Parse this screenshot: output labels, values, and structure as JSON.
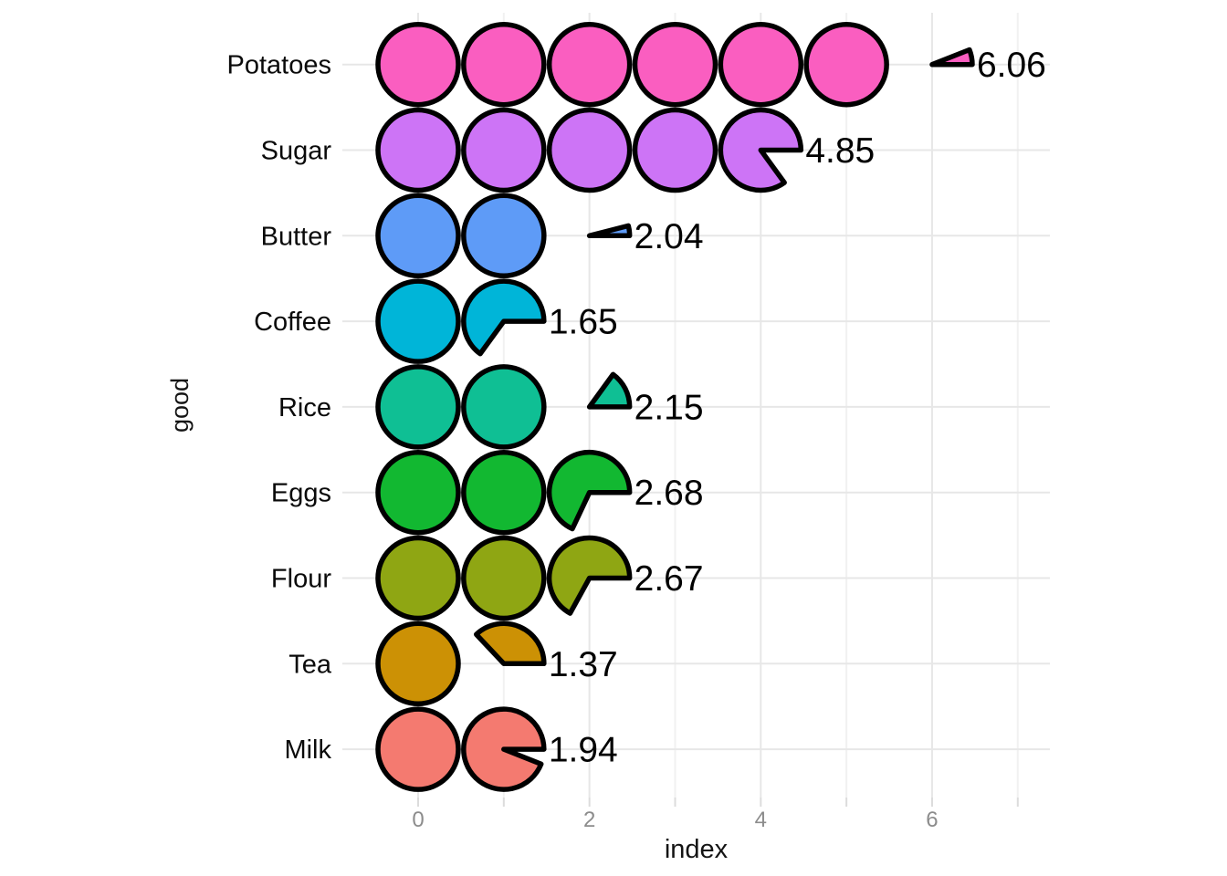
{
  "chart_data": {
    "type": "pictogram",
    "description": "Isotype-style chart: each whole unit of index is a filled circle on a unit grid; the fractional remainder is drawn as a pie wedge starting at 3 o'clock and sweeping counterclockwise. One row per good.",
    "title": "",
    "xlabel": "index",
    "ylabel": "good",
    "categories": [
      "Potatoes",
      "Sugar",
      "Butter",
      "Coffee",
      "Rice",
      "Eggs",
      "Flour",
      "Tea",
      "Milk"
    ],
    "values": [
      6.06,
      4.85,
      2.04,
      1.65,
      2.15,
      2.68,
      2.67,
      1.37,
      1.94
    ],
    "value_labels": [
      "6.06",
      "4.85",
      "2.04",
      "1.65",
      "2.15",
      "2.68",
      "2.67",
      "1.37",
      "1.94"
    ],
    "series_colors": [
      "#FA5EC0",
      "#CD74F6",
      "#5E9BF7",
      "#00B5D8",
      "#0FBF94",
      "#12B831",
      "#8FA613",
      "#CC9105",
      "#F47A70"
    ],
    "x_ticks": [
      0,
      2,
      4,
      6
    ],
    "x_tick_labels": [
      "0",
      "2",
      "4",
      "6"
    ],
    "x_minor_ticks": [
      1,
      3,
      5,
      7
    ],
    "x_unit_positions": [
      0,
      1,
      2,
      3,
      4,
      5,
      6,
      7
    ],
    "xlim": [
      -0.9,
      7.4
    ],
    "grid": "major and minor vertical gridlines, major horizontal gridline per category row, light gray on white",
    "legend": false
  },
  "colors": {
    "background": "#FFFFFF",
    "glyph_outline": "#000000",
    "grid_major": "#E7E7E7",
    "grid_minor": "#F1F1F1",
    "tick_mark": "#DCDCDC",
    "tick_label": "#8C8C8C",
    "axis_title": "#141414",
    "category_label": "#0A0A0A",
    "value_label": "#000000"
  }
}
